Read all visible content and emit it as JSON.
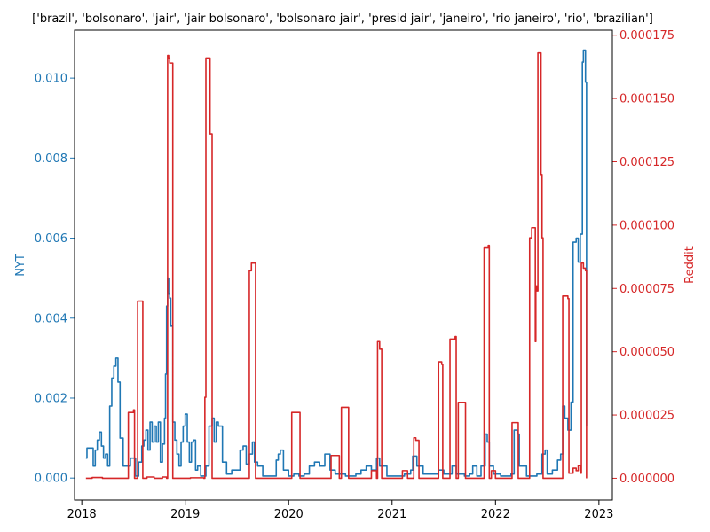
{
  "chart_data": {
    "type": "line",
    "title": "['brazil', 'bolsonaro', 'jair', 'jair bolsonaro', 'bolsonaro jair', 'presid jair', 'janeiro', 'rio janeiro', 'rio', 'brazilian']",
    "xlabel": "",
    "x_ticks": [
      2018,
      2019,
      2020,
      2021,
      2022,
      2023
    ],
    "xlim": [
      2017.93,
      2023.13
    ],
    "grid": false,
    "legend": "none",
    "y_left": {
      "label": "NYT",
      "color": "#1f77b4",
      "lim": [
        -0.00055,
        0.0112
      ],
      "ticks": [
        "0.000",
        "0.002",
        "0.004",
        "0.006",
        "0.008",
        "0.010"
      ],
      "tick_values": [
        0,
        0.002,
        0.004,
        0.006,
        0.008,
        0.01
      ]
    },
    "y_right": {
      "label": "Reddit",
      "color": "#d62728",
      "lim": [
        -8.6e-06,
        0.000177
      ],
      "ticks": [
        "0.000000",
        "0.000025",
        "0.000050",
        "0.000075",
        "0.000100",
        "0.000125",
        "0.000150",
        "0.000175"
      ],
      "tick_values": [
        0,
        2.5e-05,
        5e-05,
        7.5e-05,
        0.0001,
        0.000125,
        0.00015,
        0.000175
      ]
    },
    "series": [
      {
        "name": "NYT",
        "axis": "left",
        "color": "#1f77b4",
        "points": [
          [
            2018.04,
            0.0005
          ],
          [
            2018.05,
            0.00075
          ],
          [
            2018.1,
            0.00075
          ],
          [
            2018.11,
            0.0003
          ],
          [
            2018.13,
            0.0007
          ],
          [
            2018.15,
            0.00095
          ],
          [
            2018.17,
            0.00115
          ],
          [
            2018.19,
            0.0008
          ],
          [
            2018.21,
            0.0005
          ],
          [
            2018.23,
            0.0006
          ],
          [
            2018.25,
            0.0003
          ],
          [
            2018.27,
            0.0018
          ],
          [
            2018.29,
            0.0025
          ],
          [
            2018.31,
            0.0028
          ],
          [
            2018.33,
            0.003
          ],
          [
            2018.35,
            0.0024
          ],
          [
            2018.37,
            0.001
          ],
          [
            2018.4,
            0.0003
          ],
          [
            2018.45,
            0.0003
          ],
          [
            2018.47,
            0.0005
          ],
          [
            2018.5,
            0.0005
          ],
          [
            2018.52,
            5e-05
          ],
          [
            2018.55,
            0.0004
          ],
          [
            2018.58,
            0.0008
          ],
          [
            2018.6,
            0.00095
          ],
          [
            2018.62,
            0.0012
          ],
          [
            2018.64,
            0.0007
          ],
          [
            2018.66,
            0.0014
          ],
          [
            2018.68,
            0.0009
          ],
          [
            2018.7,
            0.0013
          ],
          [
            2018.72,
            0.0009
          ],
          [
            2018.74,
            0.0014
          ],
          [
            2018.76,
            0.0004
          ],
          [
            2018.78,
            0.00085
          ],
          [
            2018.8,
            0.0015
          ],
          [
            2018.81,
            0.0026
          ],
          [
            2018.82,
            0.0043
          ],
          [
            2018.83,
            0.005
          ],
          [
            2018.84,
            0.0046
          ],
          [
            2018.85,
            0.0045
          ],
          [
            2018.86,
            0.0038
          ],
          [
            2018.88,
            0.0014
          ],
          [
            2018.9,
            0.00095
          ],
          [
            2018.92,
            0.0006
          ],
          [
            2018.94,
            0.0003
          ],
          [
            2018.96,
            0.0009
          ],
          [
            2018.98,
            0.0013
          ],
          [
            2019.0,
            0.0016
          ],
          [
            2019.02,
            0.0009
          ],
          [
            2019.04,
            0.0004
          ],
          [
            2019.06,
            0.0009
          ],
          [
            2019.08,
            0.00095
          ],
          [
            2019.1,
            0.0002
          ],
          [
            2019.12,
            0.0003
          ],
          [
            2019.15,
            5e-05
          ],
          [
            2019.2,
            0.0003
          ],
          [
            2019.23,
            0.0013
          ],
          [
            2019.26,
            0.0015
          ],
          [
            2019.28,
            0.0009
          ],
          [
            2019.3,
            0.0014
          ],
          [
            2019.32,
            0.0013
          ],
          [
            2019.35,
            0.0013
          ],
          [
            2019.36,
            0.0004
          ],
          [
            2019.4,
            0.0001
          ],
          [
            2019.45,
            0.0002
          ],
          [
            2019.5,
            0.0002
          ],
          [
            2019.53,
            0.0007
          ],
          [
            2019.56,
            0.0008
          ],
          [
            2019.59,
            0.00035
          ],
          [
            2019.62,
            0.0006
          ],
          [
            2019.65,
            0.0009
          ],
          [
            2019.67,
            0.0004
          ],
          [
            2019.7,
            0.0003
          ],
          [
            2019.75,
            5e-05
          ],
          [
            2019.85,
            5e-05
          ],
          [
            2019.88,
            0.00045
          ],
          [
            2019.9,
            0.0006
          ],
          [
            2019.92,
            0.0007
          ],
          [
            2019.95,
            0.0002
          ],
          [
            2020.0,
            5e-05
          ],
          [
            2020.05,
            0.0001
          ],
          [
            2020.1,
            5e-05
          ],
          [
            2020.15,
            0.0001
          ],
          [
            2020.2,
            0.0003
          ],
          [
            2020.25,
            0.0004
          ],
          [
            2020.3,
            0.0003
          ],
          [
            2020.35,
            0.0006
          ],
          [
            2020.4,
            0.0002
          ],
          [
            2020.45,
            0.0001
          ],
          [
            2020.55,
            5e-05
          ],
          [
            2020.65,
            0.0001
          ],
          [
            2020.7,
            0.0002
          ],
          [
            2020.75,
            0.0003
          ],
          [
            2020.8,
            0.0002
          ],
          [
            2020.85,
            0.0005
          ],
          [
            2020.88,
            0.0003
          ],
          [
            2020.95,
            5e-05
          ],
          [
            2021.05,
            5e-05
          ],
          [
            2021.12,
            0.0001
          ],
          [
            2021.18,
            0.0002
          ],
          [
            2021.2,
            0.00055
          ],
          [
            2021.24,
            0.0003
          ],
          [
            2021.3,
            0.0001
          ],
          [
            2021.35,
            0.0001
          ],
          [
            2021.45,
            0.0002
          ],
          [
            2021.5,
            0.0001
          ],
          [
            2021.55,
            0.0001
          ],
          [
            2021.58,
            0.0003
          ],
          [
            2021.62,
            0.0001
          ],
          [
            2021.7,
            5e-05
          ],
          [
            2021.75,
            0.0001
          ],
          [
            2021.78,
            0.0003
          ],
          [
            2021.82,
            5e-05
          ],
          [
            2021.86,
            0.0003
          ],
          [
            2021.9,
            0.0011
          ],
          [
            2021.92,
            0.0009
          ],
          [
            2021.94,
            0.0003
          ],
          [
            2021.98,
            0.0001
          ],
          [
            2022.05,
            5e-05
          ],
          [
            2022.15,
            0.0001
          ],
          [
            2022.18,
            0.0012
          ],
          [
            2022.21,
            0.0011
          ],
          [
            2022.23,
            0.0003
          ],
          [
            2022.3,
            5e-05
          ],
          [
            2022.4,
            0.0001
          ],
          [
            2022.45,
            0.0006
          ],
          [
            2022.48,
            0.0007
          ],
          [
            2022.5,
            0.0001
          ],
          [
            2022.55,
            0.0002
          ],
          [
            2022.6,
            0.00045
          ],
          [
            2022.63,
            0.0006
          ],
          [
            2022.65,
            0.0018
          ],
          [
            2022.67,
            0.0015
          ],
          [
            2022.7,
            0.0012
          ],
          [
            2022.73,
            0.0019
          ],
          [
            2022.75,
            0.0059
          ],
          [
            2022.78,
            0.006
          ],
          [
            2022.8,
            0.0054
          ],
          [
            2022.82,
            0.0061
          ],
          [
            2022.84,
            0.0104
          ],
          [
            2022.85,
            0.0107
          ],
          [
            2022.87,
            0.0099
          ],
          [
            2022.88,
            0.0013
          ]
        ]
      },
      {
        "name": "Reddit",
        "axis": "right",
        "color": "#d62728",
        "points": [
          [
            2018.04,
            0.0
          ],
          [
            2018.1,
            3e-07
          ],
          [
            2018.2,
            0.0
          ],
          [
            2018.3,
            0.0
          ],
          [
            2018.44,
            0.0
          ],
          [
            2018.45,
            2.6e-05
          ],
          [
            2018.5,
            2.7e-05
          ],
          [
            2018.51,
            0.0
          ],
          [
            2018.53,
            0.0
          ],
          [
            2018.54,
            7e-05
          ],
          [
            2018.58,
            7e-05
          ],
          [
            2018.59,
            0.0
          ],
          [
            2018.63,
            5e-07
          ],
          [
            2018.7,
            0.0
          ],
          [
            2018.78,
            5e-07
          ],
          [
            2018.82,
            0.0
          ],
          [
            2018.83,
            0.000167
          ],
          [
            2018.84,
            0.000166
          ],
          [
            2018.85,
            0.000164
          ],
          [
            2018.87,
            0.000164
          ],
          [
            2018.88,
            0.0
          ],
          [
            2018.95,
            0.0
          ],
          [
            2019.05,
            2e-07
          ],
          [
            2019.18,
            0.0
          ],
          [
            2019.19,
            3.2e-05
          ],
          [
            2019.2,
            0.000166
          ],
          [
            2019.23,
            0.000166
          ],
          [
            2019.24,
            0.000136
          ],
          [
            2019.25,
            0.000136
          ],
          [
            2019.26,
            0.0
          ],
          [
            2019.35,
            0.0
          ],
          [
            2019.6,
            0.0
          ],
          [
            2019.62,
            8.2e-05
          ],
          [
            2019.64,
            8.5e-05
          ],
          [
            2019.67,
            8.5e-05
          ],
          [
            2019.68,
            0.0
          ],
          [
            2019.8,
            0.0
          ],
          [
            2019.95,
            0.0
          ],
          [
            2020.02,
            0.0
          ],
          [
            2020.03,
            2.6e-05
          ],
          [
            2020.1,
            2.6e-05
          ],
          [
            2020.11,
            0.0
          ],
          [
            2020.2,
            0.0
          ],
          [
            2020.25,
            0.0
          ],
          [
            2020.3,
            0.0
          ],
          [
            2020.4,
            0.0
          ],
          [
            2020.41,
            9e-06
          ],
          [
            2020.48,
            9e-06
          ],
          [
            2020.49,
            0.0
          ],
          [
            2020.5,
            0.0
          ],
          [
            2020.51,
            2.8e-05
          ],
          [
            2020.57,
            2.8e-05
          ],
          [
            2020.58,
            0.0
          ],
          [
            2020.7,
            0.0
          ],
          [
            2020.75,
            0.0
          ],
          [
            2020.8,
            3e-06
          ],
          [
            2020.85,
            0.0
          ],
          [
            2020.86,
            5.4e-05
          ],
          [
            2020.87,
            5.4e-05
          ],
          [
            2020.88,
            5.1e-05
          ],
          [
            2020.89,
            5.1e-05
          ],
          [
            2020.9,
            0.0
          ],
          [
            2021.0,
            0.0
          ],
          [
            2021.05,
            0.0
          ],
          [
            2021.1,
            3e-06
          ],
          [
            2021.15,
            0.0
          ],
          [
            2021.2,
            0.0
          ],
          [
            2021.21,
            1.6e-05
          ],
          [
            2021.22,
            1.6e-05
          ],
          [
            2021.23,
            1.5e-05
          ],
          [
            2021.25,
            1.5e-05
          ],
          [
            2021.26,
            0.0
          ],
          [
            2021.4,
            0.0
          ],
          [
            2021.44,
            0.0
          ],
          [
            2021.45,
            4.6e-05
          ],
          [
            2021.47,
            4.6e-05
          ],
          [
            2021.48,
            4.5e-05
          ],
          [
            2021.49,
            0.0
          ],
          [
            2021.55,
            0.0
          ],
          [
            2021.56,
            5.5e-05
          ],
          [
            2021.61,
            5.6e-05
          ],
          [
            2021.62,
            0.0
          ],
          [
            2021.63,
            0.0
          ],
          [
            2021.64,
            3e-05
          ],
          [
            2021.7,
            3e-05
          ],
          [
            2021.71,
            0.0
          ],
          [
            2021.8,
            0.0
          ],
          [
            2021.88,
            0.0
          ],
          [
            2021.89,
            9.1e-05
          ],
          [
            2021.93,
            9.2e-05
          ],
          [
            2021.94,
            0.0
          ],
          [
            2021.96,
            3e-06
          ],
          [
            2022.0,
            0.0
          ],
          [
            2022.15,
            0.0
          ],
          [
            2022.16,
            2.2e-05
          ],
          [
            2022.21,
            2.2e-05
          ],
          [
            2022.22,
            0.0
          ],
          [
            2022.3,
            0.0
          ],
          [
            2022.32,
            0.0
          ],
          [
            2022.33,
            9.5e-05
          ],
          [
            2022.35,
            9.9e-05
          ],
          [
            2022.38,
            9.9e-05
          ],
          [
            2022.385,
            5.4e-05
          ],
          [
            2022.39,
            7.6e-05
          ],
          [
            2022.4,
            7.4e-05
          ],
          [
            2022.41,
            0.000168
          ],
          [
            2022.43,
            0.000168
          ],
          [
            2022.44,
            0.00012
          ],
          [
            2022.45,
            9.5e-05
          ],
          [
            2022.46,
            0.0
          ],
          [
            2022.55,
            0.0
          ],
          [
            2022.6,
            0.0
          ],
          [
            2022.64,
            0.0
          ],
          [
            2022.65,
            7.2e-05
          ],
          [
            2022.7,
            7.1e-05
          ],
          [
            2022.71,
            2e-06
          ],
          [
            2022.75,
            4e-06
          ],
          [
            2022.78,
            3e-06
          ],
          [
            2022.8,
            5e-06
          ],
          [
            2022.82,
            2e-06
          ],
          [
            2022.83,
            8.5e-05
          ],
          [
            2022.85,
            8.3e-05
          ],
          [
            2022.87,
            8.2e-05
          ],
          [
            2022.88,
            0.0
          ]
        ]
      }
    ]
  }
}
